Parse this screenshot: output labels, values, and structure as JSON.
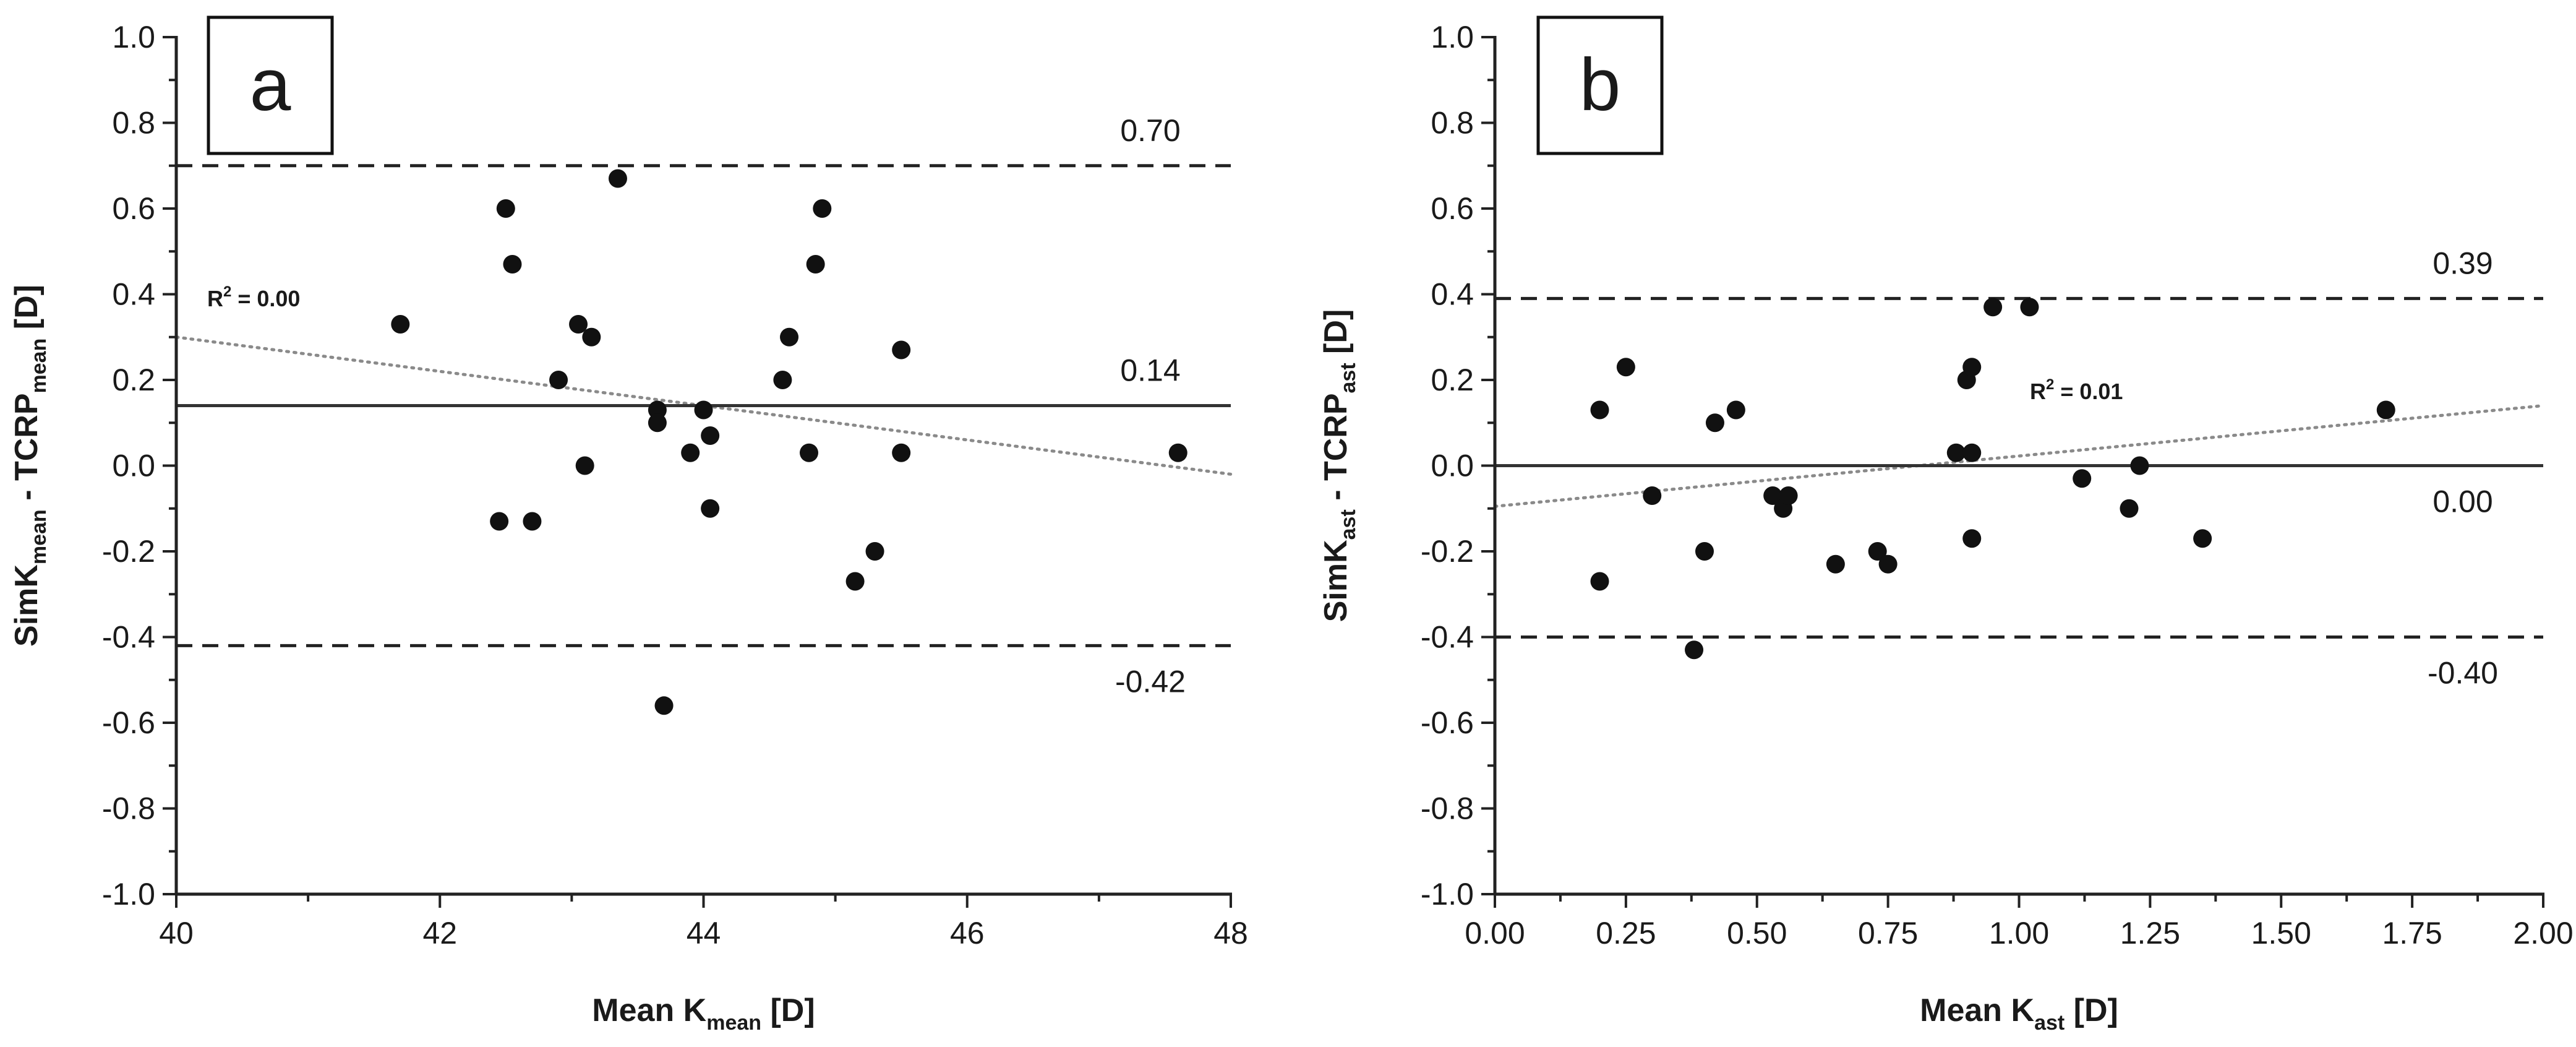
{
  "chart_data": [
    {
      "type": "scatter",
      "panel_label": "a",
      "ylabel": {
        "main": "SimK",
        "sub1": "mean",
        "mid": " - TCRP",
        "sub2": "mean",
        "end": " [D]"
      },
      "xlabel": {
        "main": "Mean K",
        "sub": "mean",
        "end": " [D]"
      },
      "xlim": [
        40,
        48
      ],
      "ylim": [
        -1.0,
        1.0
      ],
      "x_ticks": [
        "40",
        "42",
        "44",
        "46",
        "48"
      ],
      "x_tick_values": [
        40,
        42,
        44,
        46,
        48
      ],
      "y_ticks": [
        "-1.0",
        "-0.8",
        "-0.6",
        "-0.4",
        "-0.2",
        "0.0",
        "0.2",
        "0.4",
        "0.6",
        "0.8",
        "1.0"
      ],
      "y_tick_values": [
        -1.0,
        -0.8,
        -0.6,
        -0.4,
        -0.2,
        0.0,
        0.2,
        0.4,
        0.6,
        0.8,
        1.0
      ],
      "mean_line": {
        "value": 0.14,
        "label": "0.14"
      },
      "upper_loa": {
        "value": 0.7,
        "label": "0.70"
      },
      "lower_loa": {
        "value": -0.42,
        "label": "-0.42"
      },
      "regression": {
        "x": [
          40,
          48
        ],
        "y": [
          0.3,
          -0.02
        ],
        "r2_label": "R",
        "r2_sup": "2",
        "r2_value": " = 0.00"
      },
      "points": [
        {
          "x": 41.7,
          "y": 0.33
        },
        {
          "x": 42.45,
          "y": -0.13
        },
        {
          "x": 42.5,
          "y": 0.6
        },
        {
          "x": 42.55,
          "y": 0.47
        },
        {
          "x": 42.7,
          "y": -0.13
        },
        {
          "x": 42.9,
          "y": 0.2
        },
        {
          "x": 43.05,
          "y": 0.33
        },
        {
          "x": 43.1,
          "y": 0.0
        },
        {
          "x": 43.15,
          "y": 0.3
        },
        {
          "x": 43.35,
          "y": 0.67
        },
        {
          "x": 43.65,
          "y": 0.13
        },
        {
          "x": 43.65,
          "y": 0.1
        },
        {
          "x": 43.7,
          "y": -0.56
        },
        {
          "x": 43.9,
          "y": 0.03
        },
        {
          "x": 44.0,
          "y": 0.13
        },
        {
          "x": 44.05,
          "y": 0.07
        },
        {
          "x": 44.05,
          "y": -0.1
        },
        {
          "x": 44.6,
          "y": 0.2
        },
        {
          "x": 44.65,
          "y": 0.3
        },
        {
          "x": 44.8,
          "y": 0.03
        },
        {
          "x": 44.85,
          "y": 0.47
        },
        {
          "x": 44.9,
          "y": 0.6
        },
        {
          "x": 45.15,
          "y": -0.27
        },
        {
          "x": 45.3,
          "y": -0.2
        },
        {
          "x": 45.5,
          "y": 0.27
        },
        {
          "x": 45.5,
          "y": 0.03
        },
        {
          "x": 47.6,
          "y": 0.03
        }
      ]
    },
    {
      "type": "scatter",
      "panel_label": "b",
      "ylabel": {
        "main": "SimK",
        "sub1": "ast",
        "mid": " - TCRP",
        "sub2": "ast",
        "end": " [D]"
      },
      "xlabel": {
        "main": "Mean K",
        "sub": "ast",
        "end": " [D]"
      },
      "xlim": [
        0.0,
        2.0
      ],
      "ylim": [
        -1.0,
        1.0
      ],
      "x_ticks": [
        "0.00",
        "0.25",
        "0.50",
        "0.75",
        "1.00",
        "1.25",
        "1.50",
        "1.75",
        "2.00"
      ],
      "x_tick_values": [
        0.0,
        0.25,
        0.5,
        0.75,
        1.0,
        1.25,
        1.5,
        1.75,
        2.0
      ],
      "y_ticks": [
        "-1.0",
        "-0.8",
        "-0.6",
        "-0.4",
        "-0.2",
        "0.0",
        "0.2",
        "0.4",
        "0.6",
        "0.8",
        "1.0"
      ],
      "y_tick_values": [
        -1.0,
        -0.8,
        -0.6,
        -0.4,
        -0.2,
        0.0,
        0.2,
        0.4,
        0.6,
        0.8,
        1.0
      ],
      "mean_line": {
        "value": 0.0,
        "label": "0.00"
      },
      "upper_loa": {
        "value": 0.39,
        "label": "0.39"
      },
      "lower_loa": {
        "value": -0.4,
        "label": "-0.40"
      },
      "regression": {
        "x": [
          0.0,
          2.0
        ],
        "y": [
          -0.095,
          0.14
        ],
        "r2_label": "R",
        "r2_sup": "2",
        "r2_value": " = 0.01"
      },
      "points": [
        {
          "x": 0.2,
          "y": 0.13
        },
        {
          "x": 0.2,
          "y": -0.27
        },
        {
          "x": 0.25,
          "y": 0.23
        },
        {
          "x": 0.3,
          "y": -0.07
        },
        {
          "x": 0.38,
          "y": -0.43
        },
        {
          "x": 0.4,
          "y": -0.2
        },
        {
          "x": 0.42,
          "y": 0.1
        },
        {
          "x": 0.46,
          "y": 0.13
        },
        {
          "x": 0.53,
          "y": -0.07
        },
        {
          "x": 0.55,
          "y": -0.1
        },
        {
          "x": 0.56,
          "y": -0.07
        },
        {
          "x": 0.65,
          "y": -0.23
        },
        {
          "x": 0.73,
          "y": -0.2
        },
        {
          "x": 0.75,
          "y": -0.23
        },
        {
          "x": 0.88,
          "y": 0.03
        },
        {
          "x": 0.9,
          "y": 0.2
        },
        {
          "x": 0.91,
          "y": 0.23
        },
        {
          "x": 0.91,
          "y": 0.03
        },
        {
          "x": 0.91,
          "y": -0.17
        },
        {
          "x": 0.95,
          "y": 0.37
        },
        {
          "x": 1.02,
          "y": 0.37
        },
        {
          "x": 1.12,
          "y": -0.03
        },
        {
          "x": 1.21,
          "y": -0.1
        },
        {
          "x": 1.23,
          "y": 0.0
        },
        {
          "x": 1.35,
          "y": -0.17
        },
        {
          "x": 1.7,
          "y": 0.13
        }
      ]
    }
  ]
}
